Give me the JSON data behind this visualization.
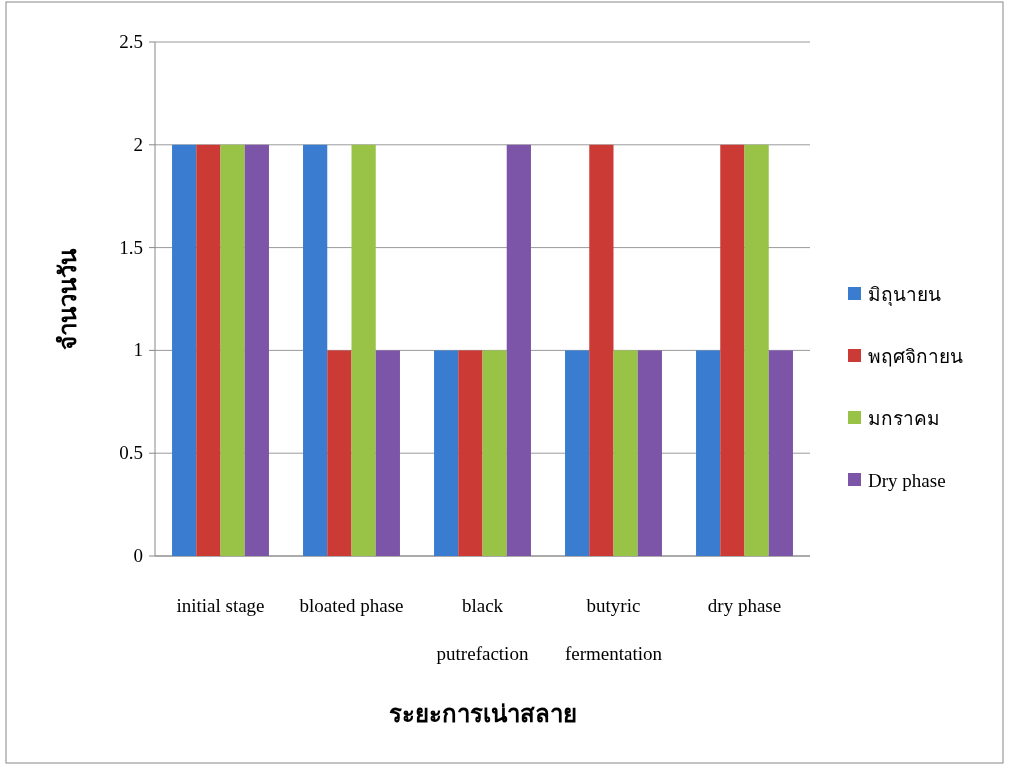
{
  "chart_data": {
    "type": "bar",
    "xlabel": "ระยะการเน่าสลาย",
    "ylabel": "จำนวนวัน",
    "categories": [
      "initial stage",
      "bloated phase",
      "black\nputrefaction",
      "butyric\nfermentation",
      "dry phase"
    ],
    "series": [
      {
        "name": "มิถุนายน",
        "color": "#3a7dd0",
        "values": [
          2,
          2,
          1,
          1,
          1
        ]
      },
      {
        "name": "พฤศจิกายน",
        "color": "#cc3a36",
        "values": [
          2,
          1,
          1,
          2,
          2
        ]
      },
      {
        "name": "มกราคม",
        "color": "#98c346",
        "values": [
          2,
          2,
          1,
          1,
          2
        ]
      },
      {
        "name": "Dry phase",
        "color": "#7c55a8",
        "values": [
          2,
          1,
          2,
          1,
          1
        ]
      }
    ],
    "ylim": [
      0,
      2.5
    ],
    "yticks": [
      0,
      0.5,
      1,
      1.5,
      2,
      2.5
    ],
    "grid": "y",
    "legend": "right"
  }
}
